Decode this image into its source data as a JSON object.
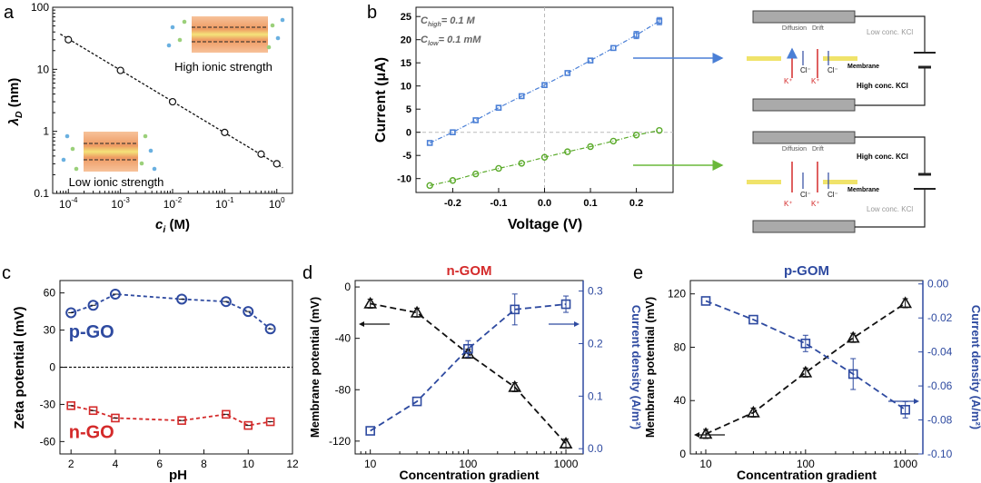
{
  "colors": {
    "blue": "#2e4aa0",
    "red": "#d42a2a",
    "green": "#5aaa2a",
    "lightblue": "#4a7fd6",
    "black": "#111111",
    "gray": "#999999"
  },
  "panel_labels": {
    "a": "a",
    "b": "b",
    "c": "c",
    "d": "d",
    "e": "e"
  },
  "schematic": {
    "diffusion": "Diffusion",
    "drift": "Drift",
    "membrane": "Membrane",
    "low_kcl": "Low conc. KCl",
    "high_kcl": "High conc. KCl",
    "k_ion": "K⁺",
    "cl_ion": "Cl⁻"
  },
  "chart_data": [
    {
      "id": "a",
      "type": "scatter",
      "xscale": "log",
      "yscale": "log",
      "xlabel_main": "c",
      "xlabel_sub": "i",
      "xlabel_unit": " (M)",
      "ylabel_main": "λ",
      "ylabel_sub": "D",
      "ylabel_unit": " (nm)",
      "xlim": [
        5e-05,
        2
      ],
      "ylim": [
        0.1,
        100
      ],
      "xticks": [
        {
          "v": 0.0001,
          "b": "10",
          "e": "-4"
        },
        {
          "v": 0.001,
          "b": "10",
          "e": "-3"
        },
        {
          "v": 0.01,
          "b": "10",
          "e": "-2"
        },
        {
          "v": 0.1,
          "b": "10",
          "e": "-1"
        },
        {
          "v": 1,
          "b": "10",
          "e": "0"
        }
      ],
      "yticks": [
        {
          "v": 0.1,
          "t": "0.1"
        },
        {
          "v": 1,
          "t": "1"
        },
        {
          "v": 10,
          "t": "10"
        },
        {
          "v": 100,
          "t": "100"
        }
      ],
      "x": [
        0.0001,
        0.001,
        0.01,
        0.1,
        0.5,
        1
      ],
      "y": [
        30,
        9.6,
        3.0,
        0.96,
        0.43,
        0.3
      ],
      "annotations": [
        "High ionic strength",
        "Low ionic strength"
      ]
    },
    {
      "id": "b",
      "type": "line",
      "xlabel": "Voltage (V)",
      "ylabel": "Current (μA)",
      "xlim": [
        -0.28,
        0.28
      ],
      "ylim": [
        -13,
        27
      ],
      "xticks": [
        -0.2,
        -0.1,
        0.0,
        0.1,
        0.2
      ],
      "yticks": [
        -10,
        -5,
        0,
        5,
        10,
        15,
        20,
        25
      ],
      "legend": {
        "chigh": "C",
        "chigh_sub": "high",
        "chigh_val": "= 0.1 M",
        "clow": "C",
        "clow_sub": "low",
        "clow_val": "= 0.1 mM"
      },
      "series": [
        {
          "name": "blue",
          "x": [
            -0.25,
            -0.2,
            -0.15,
            -0.1,
            -0.05,
            0,
            0.05,
            0.1,
            0.15,
            0.2,
            0.25
          ],
          "y": [
            -2.3,
            0,
            2.6,
            5.3,
            7.8,
            10.2,
            12.8,
            15.5,
            18.2,
            21.0,
            24.0
          ]
        },
        {
          "name": "green",
          "x": [
            -0.25,
            -0.2,
            -0.15,
            -0.1,
            -0.05,
            0,
            0.05,
            0.1,
            0.15,
            0.2,
            0.25
          ],
          "y": [
            -11.5,
            -10.4,
            -9.0,
            -7.8,
            -6.7,
            -5.4,
            -4.2,
            -3.1,
            -1.9,
            -0.6,
            0.4
          ]
        }
      ]
    },
    {
      "id": "c",
      "type": "scatter",
      "xlabel": "pH",
      "ylabel": "Zeta potential (mV)",
      "xlim": [
        1.5,
        12
      ],
      "ylim": [
        -70,
        70
      ],
      "xticks": [
        2,
        4,
        6,
        8,
        10,
        12
      ],
      "yticks": [
        -60,
        -30,
        0,
        30,
        60
      ],
      "series": [
        {
          "name": "p-GO",
          "label": "p-GO",
          "x": [
            2,
            3,
            4,
            7,
            9,
            10,
            11
          ],
          "y": [
            44,
            50,
            59,
            55,
            53,
            45,
            31
          ]
        },
        {
          "name": "n-GO",
          "label": "n-GO",
          "x": [
            2,
            3,
            4,
            7,
            9,
            10,
            11
          ],
          "y": [
            -31,
            -35,
            -41,
            -43,
            -38,
            -47,
            -44
          ]
        }
      ]
    },
    {
      "id": "d",
      "type": "line",
      "title": "n-GOM",
      "xlabel": "Concentration gradient",
      "ylabel": "Membrane potential (mV)",
      "ylabel2": "Current density (A/m²)",
      "xlim": [
        7,
        1500
      ],
      "ylim": [
        -130,
        5
      ],
      "ylim2": [
        -0.01,
        0.32
      ],
      "xticks": [
        10,
        100,
        1000
      ],
      "yticks": [
        -120,
        -80,
        -40,
        0
      ],
      "yticks2": [
        0.0,
        0.1,
        0.2,
        0.3
      ],
      "series": [
        {
          "name": "Membrane potential",
          "axis": "left",
          "x": [
            10,
            30,
            100,
            300,
            1000
          ],
          "y": [
            -13,
            -20,
            -52,
            -78,
            -122
          ]
        },
        {
          "name": "Current density",
          "axis": "right",
          "x": [
            10,
            30,
            100,
            300,
            1000
          ],
          "y": [
            0.034,
            0.09,
            0.19,
            0.265,
            0.275
          ]
        }
      ]
    },
    {
      "id": "e",
      "type": "line",
      "title": "p-GOM",
      "xlabel": "Concentration gradient",
      "ylabel": "Membrane potential (mV)",
      "ylabel2": "Current density (A/m²)",
      "xlim": [
        7,
        1500
      ],
      "ylim": [
        0,
        130
      ],
      "ylim2": [
        -0.1,
        0.002
      ],
      "xticks": [
        10,
        100,
        1000
      ],
      "yticks": [
        0,
        40,
        80,
        120
      ],
      "yticks2": [
        -0.1,
        -0.08,
        -0.06,
        -0.04,
        -0.02,
        0.0
      ],
      "series": [
        {
          "name": "Membrane potential",
          "axis": "left",
          "x": [
            10,
            30,
            100,
            300,
            1000
          ],
          "y": [
            15,
            31,
            61,
            87,
            113
          ]
        },
        {
          "name": "Current density",
          "axis": "right",
          "x": [
            10,
            30,
            100,
            300,
            1000
          ],
          "y": [
            -0.01,
            -0.021,
            -0.035,
            -0.053,
            -0.074
          ]
        }
      ]
    }
  ]
}
